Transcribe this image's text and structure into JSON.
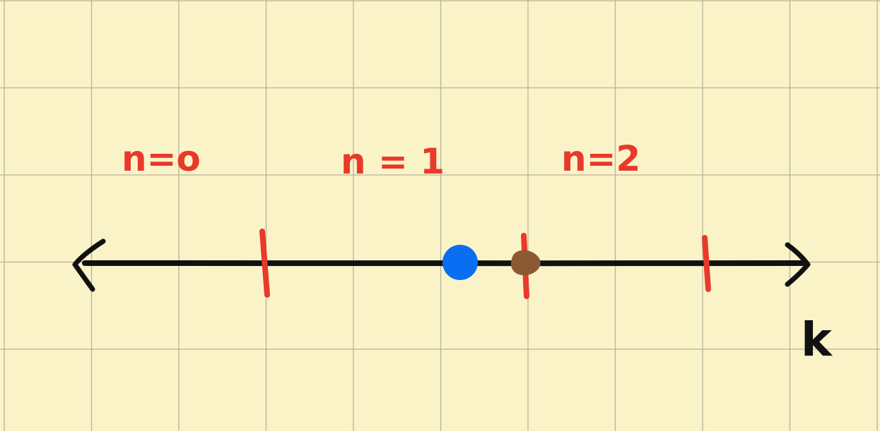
{
  "colors": {
    "paper": "#fbf3c8",
    "grid": "#b9b199",
    "axis": "#111111",
    "tick": "#e8392b",
    "region_label": "#e8392b",
    "blue_point": "#0a6ef2",
    "brown_point": "#8b5a33"
  },
  "axis": {
    "variable_label": "k",
    "arrows": "both"
  },
  "regions": [
    {
      "label": "n=o"
    },
    {
      "label": "n = 1"
    },
    {
      "label": "n=2"
    }
  ],
  "ticks": [
    {
      "name": "tick-1"
    },
    {
      "name": "tick-2"
    },
    {
      "name": "tick-3"
    }
  ],
  "points": [
    {
      "name": "blue-point",
      "color": "#0a6ef2"
    },
    {
      "name": "brown-point",
      "color": "#8b5a33"
    }
  ]
}
